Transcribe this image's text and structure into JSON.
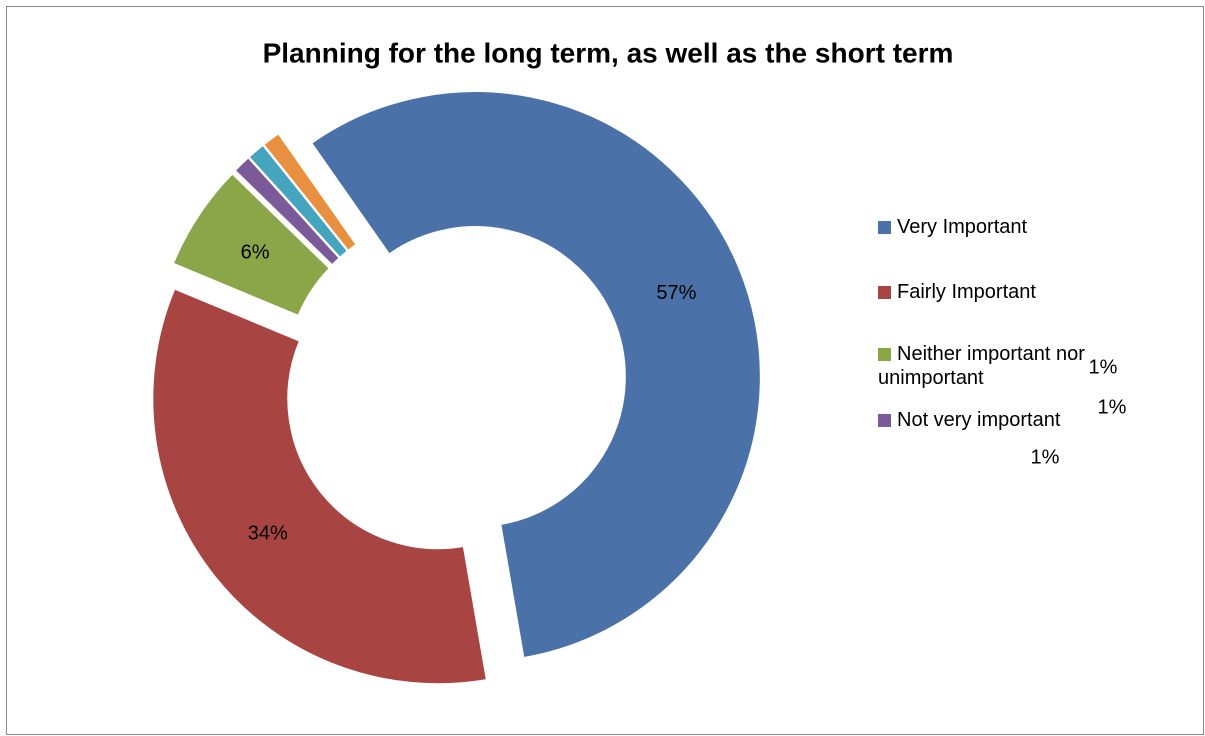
{
  "chart_data": {
    "type": "donut",
    "title": "Planning for the long term, as well as the short term",
    "categories": [
      "Very Important",
      "Fairly Important",
      "Neither important nor unimportant",
      "Not very important",
      null,
      null
    ],
    "values": [
      57,
      34,
      6,
      1,
      1,
      1
    ],
    "value_labels": [
      "57%",
      "34%",
      "6%",
      "1%",
      "1%",
      "1%"
    ],
    "colors": [
      "#4a72a8",
      "#a84542",
      "#8aa648",
      "#7a5a98",
      "#45a5be",
      "#e8903f"
    ],
    "legend": "right"
  }
}
